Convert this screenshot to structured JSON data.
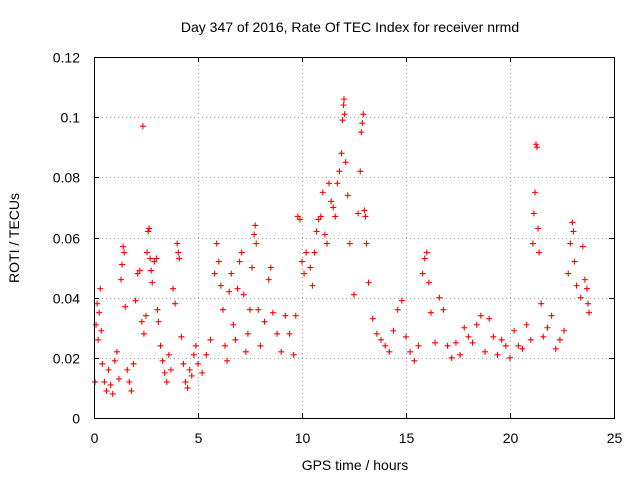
{
  "chart_data": {
    "type": "scatter",
    "title": "Day 347 of 2016, Rate Of TEC Index for receiver nrmd",
    "xlabel": "GPS time / hours",
    "ylabel": "ROTI / TECUs",
    "xlim": [
      0,
      25
    ],
    "ylim": [
      0,
      0.12
    ],
    "xticks": [
      0,
      5,
      10,
      15,
      20,
      25
    ],
    "yticks": [
      0,
      0.02,
      0.04,
      0.06,
      0.08,
      0.1,
      0.12
    ],
    "xtick_labels": [
      "0",
      "5",
      "10",
      "15",
      "20",
      "25"
    ],
    "ytick_labels": [
      "0",
      "0.02",
      "0.04",
      "0.06",
      "0.08",
      "0.1",
      "0.12"
    ],
    "grid": true,
    "legend": "none",
    "marker": "+",
    "color": "#ff0000",
    "series": [
      {
        "name": "ROTI",
        "points": [
          [
            0.05,
            0.012
          ],
          [
            0.1,
            0.031
          ],
          [
            0.15,
            0.038
          ],
          [
            0.2,
            0.026
          ],
          [
            0.25,
            0.035
          ],
          [
            0.3,
            0.043
          ],
          [
            0.35,
            0.029
          ],
          [
            0.4,
            0.018
          ],
          [
            0.5,
            0.012
          ],
          [
            0.6,
            0.009
          ],
          [
            0.7,
            0.016
          ],
          [
            0.8,
            0.011
          ],
          [
            0.9,
            0.008
          ],
          [
            1.0,
            0.019
          ],
          [
            1.1,
            0.022
          ],
          [
            1.2,
            0.013
          ],
          [
            1.3,
            0.046
          ],
          [
            1.35,
            0.051
          ],
          [
            1.4,
            0.057
          ],
          [
            1.45,
            0.055
          ],
          [
            1.5,
            0.037
          ],
          [
            1.6,
            0.016
          ],
          [
            1.7,
            0.012
          ],
          [
            1.8,
            0.009
          ],
          [
            1.9,
            0.018
          ],
          [
            2.0,
            0.039
          ],
          [
            2.1,
            0.048
          ],
          [
            2.2,
            0.049
          ],
          [
            2.3,
            0.032
          ],
          [
            2.35,
            0.097
          ],
          [
            2.4,
            0.028
          ],
          [
            2.5,
            0.034
          ],
          [
            2.55,
            0.055
          ],
          [
            2.6,
            0.062
          ],
          [
            2.65,
            0.063
          ],
          [
            2.7,
            0.053
          ],
          [
            2.75,
            0.049
          ],
          [
            2.8,
            0.045
          ],
          [
            2.9,
            0.052
          ],
          [
            3.0,
            0.053
          ],
          [
            3.05,
            0.036
          ],
          [
            3.1,
            0.032
          ],
          [
            3.2,
            0.024
          ],
          [
            3.3,
            0.019
          ],
          [
            3.4,
            0.015
          ],
          [
            3.5,
            0.012
          ],
          [
            3.6,
            0.021
          ],
          [
            3.7,
            0.016
          ],
          [
            3.8,
            0.043
          ],
          [
            3.9,
            0.038
          ],
          [
            4.0,
            0.058
          ],
          [
            4.05,
            0.055
          ],
          [
            4.1,
            0.053
          ],
          [
            4.2,
            0.027
          ],
          [
            4.3,
            0.018
          ],
          [
            4.4,
            0.012
          ],
          [
            4.5,
            0.01
          ],
          [
            4.6,
            0.016
          ],
          [
            4.7,
            0.014
          ],
          [
            4.8,
            0.021
          ],
          [
            4.9,
            0.024
          ],
          [
            5.0,
            0.018
          ],
          [
            5.2,
            0.015
          ],
          [
            5.4,
            0.021
          ],
          [
            5.6,
            0.026
          ],
          [
            5.8,
            0.048
          ],
          [
            5.9,
            0.058
          ],
          [
            6.0,
            0.052
          ],
          [
            6.1,
            0.044
          ],
          [
            6.2,
            0.036
          ],
          [
            6.3,
            0.024
          ],
          [
            6.4,
            0.019
          ],
          [
            6.5,
            0.042
          ],
          [
            6.6,
            0.048
          ],
          [
            6.7,
            0.031
          ],
          [
            6.8,
            0.026
          ],
          [
            6.9,
            0.043
          ],
          [
            7.0,
            0.052
          ],
          [
            7.1,
            0.055
          ],
          [
            7.2,
            0.041
          ],
          [
            7.3,
            0.022
          ],
          [
            7.4,
            0.028
          ],
          [
            7.5,
            0.036
          ],
          [
            7.6,
            0.05
          ],
          [
            7.7,
            0.061
          ],
          [
            7.75,
            0.064
          ],
          [
            7.8,
            0.058
          ],
          [
            7.9,
            0.036
          ],
          [
            8.0,
            0.024
          ],
          [
            8.2,
            0.032
          ],
          [
            8.4,
            0.046
          ],
          [
            8.5,
            0.05
          ],
          [
            8.6,
            0.035
          ],
          [
            8.8,
            0.028
          ],
          [
            9.0,
            0.022
          ],
          [
            9.2,
            0.034
          ],
          [
            9.4,
            0.028
          ],
          [
            9.6,
            0.021
          ],
          [
            9.7,
            0.034
          ],
          [
            9.8,
            0.067
          ],
          [
            9.9,
            0.066
          ],
          [
            10.0,
            0.052
          ],
          [
            10.1,
            0.048
          ],
          [
            10.2,
            0.055
          ],
          [
            10.4,
            0.05
          ],
          [
            10.5,
            0.044
          ],
          [
            10.6,
            0.055
          ],
          [
            10.7,
            0.062
          ],
          [
            10.8,
            0.066
          ],
          [
            10.9,
            0.067
          ],
          [
            11.0,
            0.075
          ],
          [
            11.1,
            0.061
          ],
          [
            11.2,
            0.058
          ],
          [
            11.3,
            0.078
          ],
          [
            11.4,
            0.072
          ],
          [
            11.5,
            0.07
          ],
          [
            11.6,
            0.067
          ],
          [
            11.7,
            0.078
          ],
          [
            11.8,
            0.082
          ],
          [
            11.9,
            0.088
          ],
          [
            11.95,
            0.099
          ],
          [
            12.0,
            0.104
          ],
          [
            12.02,
            0.106
          ],
          [
            12.05,
            0.101
          ],
          [
            12.1,
            0.085
          ],
          [
            12.2,
            0.074
          ],
          [
            12.3,
            0.058
          ],
          [
            12.5,
            0.041
          ],
          [
            12.7,
            0.068
          ],
          [
            12.8,
            0.082
          ],
          [
            12.85,
            0.095
          ],
          [
            12.9,
            0.098
          ],
          [
            12.95,
            0.101
          ],
          [
            13.0,
            0.069
          ],
          [
            13.05,
            0.067
          ],
          [
            13.1,
            0.058
          ],
          [
            13.2,
            0.045
          ],
          [
            13.4,
            0.033
          ],
          [
            13.6,
            0.028
          ],
          [
            13.8,
            0.026
          ],
          [
            14.0,
            0.024
          ],
          [
            14.2,
            0.022
          ],
          [
            14.4,
            0.029
          ],
          [
            14.6,
            0.036
          ],
          [
            14.8,
            0.039
          ],
          [
            15.0,
            0.027
          ],
          [
            15.2,
            0.022
          ],
          [
            15.4,
            0.019
          ],
          [
            15.6,
            0.024
          ],
          [
            15.8,
            0.048
          ],
          [
            15.9,
            0.053
          ],
          [
            16.0,
            0.055
          ],
          [
            16.1,
            0.045
          ],
          [
            16.2,
            0.035
          ],
          [
            16.4,
            0.025
          ],
          [
            16.6,
            0.04
          ],
          [
            16.8,
            0.036
          ],
          [
            17.0,
            0.024
          ],
          [
            17.2,
            0.02
          ],
          [
            17.4,
            0.025
          ],
          [
            17.6,
            0.021
          ],
          [
            17.8,
            0.03
          ],
          [
            18.0,
            0.027
          ],
          [
            18.2,
            0.025
          ],
          [
            18.4,
            0.031
          ],
          [
            18.6,
            0.034
          ],
          [
            18.8,
            0.022
          ],
          [
            19.0,
            0.033
          ],
          [
            19.2,
            0.027
          ],
          [
            19.4,
            0.021
          ],
          [
            19.6,
            0.026
          ],
          [
            19.8,
            0.024
          ],
          [
            20.0,
            0.02
          ],
          [
            20.2,
            0.029
          ],
          [
            20.4,
            0.024
          ],
          [
            20.6,
            0.023
          ],
          [
            20.8,
            0.031
          ],
          [
            21.0,
            0.026
          ],
          [
            21.1,
            0.058
          ],
          [
            21.15,
            0.068
          ],
          [
            21.2,
            0.075
          ],
          [
            21.25,
            0.091
          ],
          [
            21.3,
            0.09
          ],
          [
            21.35,
            0.063
          ],
          [
            21.4,
            0.055
          ],
          [
            21.5,
            0.038
          ],
          [
            21.6,
            0.027
          ],
          [
            21.8,
            0.03
          ],
          [
            22.0,
            0.034
          ],
          [
            22.2,
            0.023
          ],
          [
            22.4,
            0.026
          ],
          [
            22.6,
            0.029
          ],
          [
            22.8,
            0.048
          ],
          [
            22.9,
            0.058
          ],
          [
            23.0,
            0.065
          ],
          [
            23.05,
            0.062
          ],
          [
            23.1,
            0.052
          ],
          [
            23.2,
            0.044
          ],
          [
            23.4,
            0.04
          ],
          [
            23.5,
            0.057
          ],
          [
            23.6,
            0.046
          ],
          [
            23.7,
            0.043
          ],
          [
            23.75,
            0.038
          ],
          [
            23.8,
            0.035
          ]
        ]
      }
    ]
  }
}
